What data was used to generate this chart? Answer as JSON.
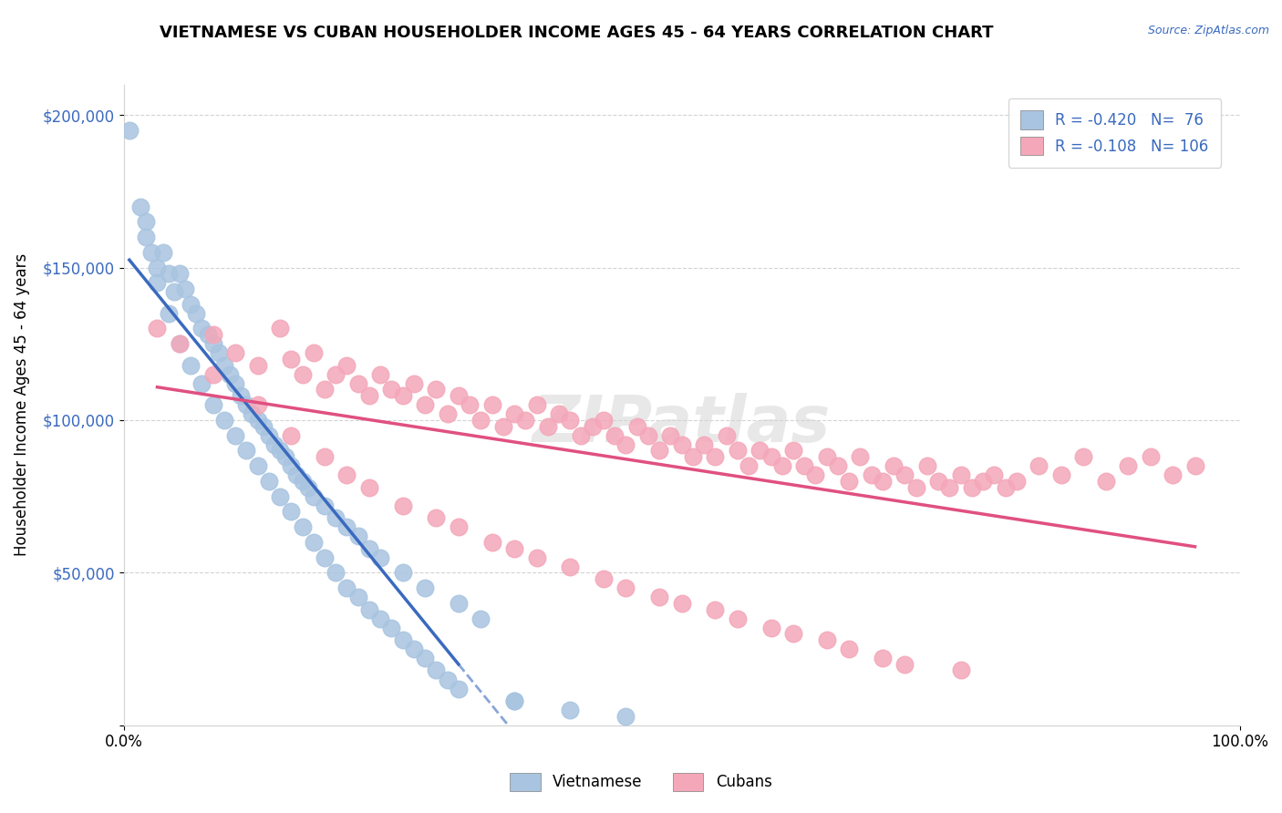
{
  "title": "VIETNAMESE VS CUBAN HOUSEHOLDER INCOME AGES 45 - 64 YEARS CORRELATION CHART",
  "source": "Source: ZipAtlas.com",
  "xlabel": "",
  "ylabel": "Householder Income Ages 45 - 64 years",
  "xlim": [
    0,
    100
  ],
  "ylim": [
    0,
    210000
  ],
  "yticks": [
    0,
    50000,
    100000,
    150000,
    200000
  ],
  "ytick_labels": [
    "",
    "$50,000",
    "$100,000",
    "$150,000",
    "$200,000"
  ],
  "xtick_labels": [
    "0.0%",
    "100.0%"
  ],
  "vietnamese_color": "#a8c4e0",
  "cuban_color": "#f4a7b9",
  "vietnamese_line_color": "#3a6abf",
  "cuban_line_color": "#e05080",
  "vietnamese_R": -0.42,
  "vietnamese_N": 76,
  "cuban_R": -0.108,
  "cuban_N": 106,
  "watermark": "ZIPatlas",
  "vietnamese_x": [
    0.5,
    1.5,
    2.0,
    2.5,
    3.0,
    3.5,
    4.0,
    4.5,
    5.0,
    5.5,
    6.0,
    6.5,
    7.0,
    7.5,
    8.0,
    8.5,
    9.0,
    9.5,
    10.0,
    10.5,
    11.0,
    11.5,
    12.0,
    12.5,
    13.0,
    13.5,
    14.0,
    14.5,
    15.0,
    15.5,
    16.0,
    16.5,
    17.0,
    18.0,
    19.0,
    20.0,
    21.0,
    22.0,
    23.0,
    25.0,
    27.0,
    30.0,
    32.0,
    35.0,
    2.0,
    3.0,
    4.0,
    5.0,
    6.0,
    7.0,
    8.0,
    9.0,
    10.0,
    11.0,
    12.0,
    13.0,
    14.0,
    15.0,
    16.0,
    17.0,
    18.0,
    19.0,
    20.0,
    21.0,
    22.0,
    23.0,
    24.0,
    25.0,
    26.0,
    27.0,
    28.0,
    29.0,
    30.0,
    35.0,
    40.0,
    45.0
  ],
  "vietnamese_y": [
    195000,
    170000,
    165000,
    155000,
    150000,
    155000,
    148000,
    142000,
    148000,
    143000,
    138000,
    135000,
    130000,
    128000,
    125000,
    122000,
    118000,
    115000,
    112000,
    108000,
    105000,
    102000,
    100000,
    98000,
    95000,
    92000,
    90000,
    88000,
    85000,
    82000,
    80000,
    78000,
    75000,
    72000,
    68000,
    65000,
    62000,
    58000,
    55000,
    50000,
    45000,
    40000,
    35000,
    8000,
    160000,
    145000,
    135000,
    125000,
    118000,
    112000,
    105000,
    100000,
    95000,
    90000,
    85000,
    80000,
    75000,
    70000,
    65000,
    60000,
    55000,
    50000,
    45000,
    42000,
    38000,
    35000,
    32000,
    28000,
    25000,
    22000,
    18000,
    15000,
    12000,
    8000,
    5000,
    3000
  ],
  "cuban_x": [
    3.0,
    5.0,
    8.0,
    10.0,
    12.0,
    14.0,
    15.0,
    16.0,
    17.0,
    18.0,
    19.0,
    20.0,
    21.0,
    22.0,
    23.0,
    24.0,
    25.0,
    26.0,
    27.0,
    28.0,
    29.0,
    30.0,
    31.0,
    32.0,
    33.0,
    34.0,
    35.0,
    36.0,
    37.0,
    38.0,
    39.0,
    40.0,
    41.0,
    42.0,
    43.0,
    44.0,
    45.0,
    46.0,
    47.0,
    48.0,
    49.0,
    50.0,
    51.0,
    52.0,
    53.0,
    54.0,
    55.0,
    56.0,
    57.0,
    58.0,
    59.0,
    60.0,
    61.0,
    62.0,
    63.0,
    64.0,
    65.0,
    66.0,
    67.0,
    68.0,
    69.0,
    70.0,
    71.0,
    72.0,
    73.0,
    74.0,
    75.0,
    76.0,
    77.0,
    78.0,
    79.0,
    80.0,
    82.0,
    84.0,
    86.0,
    88.0,
    90.0,
    92.0,
    94.0,
    96.0,
    8.0,
    12.0,
    15.0,
    18.0,
    20.0,
    22.0,
    25.0,
    28.0,
    30.0,
    33.0,
    35.0,
    37.0,
    40.0,
    43.0,
    45.0,
    48.0,
    50.0,
    53.0,
    55.0,
    58.0,
    60.0,
    63.0,
    65.0,
    68.0,
    70.0,
    75.0
  ],
  "cuban_y": [
    130000,
    125000,
    128000,
    122000,
    118000,
    130000,
    120000,
    115000,
    122000,
    110000,
    115000,
    118000,
    112000,
    108000,
    115000,
    110000,
    108000,
    112000,
    105000,
    110000,
    102000,
    108000,
    105000,
    100000,
    105000,
    98000,
    102000,
    100000,
    105000,
    98000,
    102000,
    100000,
    95000,
    98000,
    100000,
    95000,
    92000,
    98000,
    95000,
    90000,
    95000,
    92000,
    88000,
    92000,
    88000,
    95000,
    90000,
    85000,
    90000,
    88000,
    85000,
    90000,
    85000,
    82000,
    88000,
    85000,
    80000,
    88000,
    82000,
    80000,
    85000,
    82000,
    78000,
    85000,
    80000,
    78000,
    82000,
    78000,
    80000,
    82000,
    78000,
    80000,
    85000,
    82000,
    88000,
    80000,
    85000,
    88000,
    82000,
    85000,
    115000,
    105000,
    95000,
    88000,
    82000,
    78000,
    72000,
    68000,
    65000,
    60000,
    58000,
    55000,
    52000,
    48000,
    45000,
    42000,
    40000,
    38000,
    35000,
    32000,
    30000,
    28000,
    25000,
    22000,
    20000,
    18000
  ]
}
